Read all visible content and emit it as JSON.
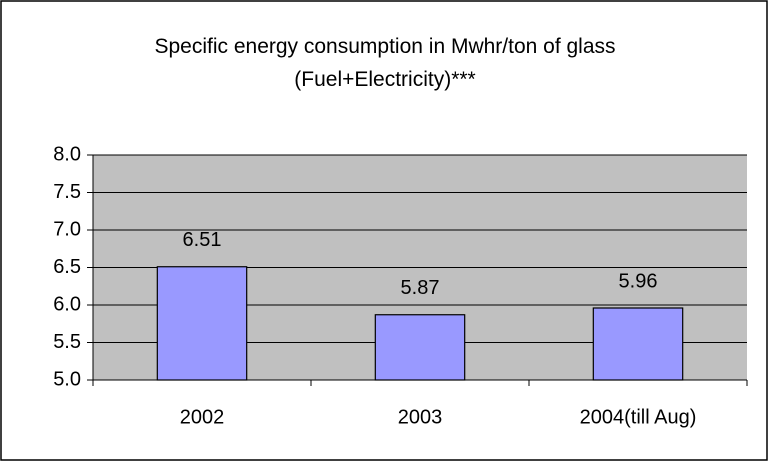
{
  "chart_data": {
    "type": "bar",
    "title": "Specific energy consumption in Mwhr/ton of glass (Fuel+Electricity)***",
    "categories": [
      "2002",
      "2003",
      "2004(till Aug)"
    ],
    "values": [
      6.51,
      5.87,
      5.96
    ],
    "color": "#9999ff",
    "ylim": [
      5,
      8
    ],
    "yticks": [
      {
        "value": 5,
        "label": "5.0"
      },
      {
        "value": 5.5,
        "label": "5.5"
      },
      {
        "value": 6,
        "label": "6.0"
      },
      {
        "value": 6.5,
        "label": "6.5"
      },
      {
        "value": 7,
        "label": "7.0"
      },
      {
        "value": 7.5,
        "label": "7.5"
      },
      {
        "value": 8,
        "label": "8.0"
      }
    ],
    "grid": true
  }
}
